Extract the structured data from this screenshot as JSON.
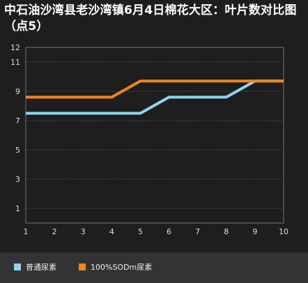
{
  "chart_data": {
    "type": "line",
    "title": "中石油沙湾县老沙湾镇6月4日棉花大区：叶片数对比图（点5）",
    "x": [
      1,
      2,
      3,
      4,
      5,
      6,
      7,
      8,
      9,
      10
    ],
    "xlim": [
      1,
      10
    ],
    "ylim": [
      0,
      12
    ],
    "y_ticks": [
      1,
      3,
      5,
      7,
      9,
      11,
      12
    ],
    "grid": true,
    "legend_position": "bottom-left",
    "series": [
      {
        "name": "普通尿素",
        "color": "#8fd4ee",
        "values": [
          7.5,
          7.5,
          7.5,
          7.5,
          7.5,
          8.6,
          8.6,
          8.6,
          9.7,
          9.7
        ]
      },
      {
        "name": "100%SODm尿素",
        "color": "#f0861c",
        "values": [
          8.6,
          8.6,
          8.6,
          8.6,
          9.7,
          9.7,
          9.7,
          9.7,
          9.7,
          9.7
        ]
      }
    ]
  }
}
